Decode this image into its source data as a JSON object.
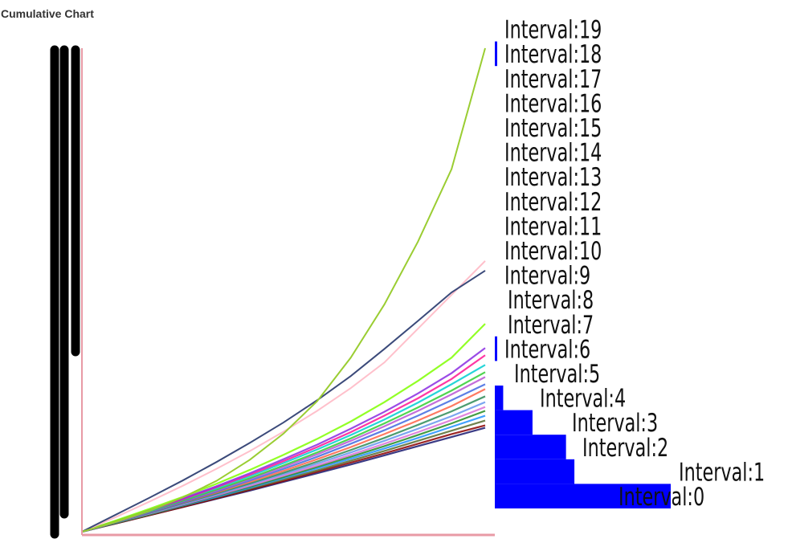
{
  "title": "Cumulative Chart",
  "colors": {
    "axis": "#e89aa5",
    "histogram": "#0000ff",
    "label_box": "#000000",
    "left_marks": "#000000"
  },
  "chart_data": [
    {
      "type": "line",
      "title": "Cumulative Chart",
      "xlabel": "",
      "ylabel": "",
      "x": [
        0,
        1,
        2,
        3,
        4,
        5,
        6,
        7,
        8,
        9,
        10,
        11,
        12
      ],
      "xlim": [
        0,
        12
      ],
      "ylim": [
        0,
        100
      ],
      "grid": false,
      "legend": "none",
      "series_count": 60,
      "series": [
        {
          "color": "#9acd32",
          "values": [
            0,
            2.0,
            4.3,
            7.1,
            10.5,
            14.9,
            20.3,
            27.0,
            36.0,
            47.0,
            60.0,
            75.0,
            100.0
          ]
        },
        {
          "color": "#3b4a7a",
          "values": [
            0,
            3.5,
            7.0,
            10.6,
            14.4,
            18.4,
            22.6,
            27.2,
            32.2,
            37.8,
            43.6,
            49.5,
            54.0
          ]
        },
        {
          "color": "#ffc0cb",
          "values": [
            0,
            3.0,
            6.2,
            9.5,
            13.0,
            16.7,
            20.7,
            25.0,
            29.7,
            35.0,
            42.0,
            49.0,
            56.0
          ]
        },
        {
          "color": "#7fff00",
          "values": [
            0,
            2.3,
            4.7,
            7.2,
            9.9,
            12.8,
            15.9,
            19.2,
            22.8,
            26.8,
            31.2,
            36.0,
            43.0
          ]
        },
        {
          "color": "#8a2be2",
          "values": [
            0,
            2.2,
            4.5,
            6.9,
            9.4,
            12.1,
            15.0,
            18.0,
            21.3,
            24.8,
            28.6,
            32.8,
            38.0
          ]
        },
        {
          "color": "#ff1493",
          "values": [
            0,
            2.2,
            4.4,
            6.7,
            9.2,
            11.8,
            14.6,
            17.5,
            20.6,
            24.0,
            27.6,
            31.6,
            36.5
          ]
        },
        {
          "color": "#00ced1",
          "values": [
            0,
            2.1,
            4.3,
            6.6,
            9.0,
            11.5,
            14.2,
            17.0,
            20.0,
            23.2,
            26.7,
            30.5,
            34.5
          ]
        },
        {
          "color": "#32cd32",
          "values": [
            0,
            2.1,
            4.2,
            6.4,
            8.7,
            11.1,
            13.7,
            16.4,
            19.3,
            22.4,
            25.7,
            29.2,
            33.0
          ]
        },
        {
          "color": "#ba55d3",
          "values": [
            0,
            2.0,
            4.1,
            6.3,
            8.5,
            10.9,
            13.4,
            16.0,
            18.8,
            21.8,
            25.0,
            28.4,
            32.0
          ]
        },
        {
          "color": "#4169e1",
          "values": [
            0,
            2.0,
            4.0,
            6.1,
            8.3,
            10.6,
            13.0,
            15.5,
            18.2,
            21.0,
            24.0,
            27.2,
            30.5
          ]
        },
        {
          "color": "#ff6347",
          "values": [
            0,
            2.0,
            4.0,
            6.0,
            8.1,
            10.3,
            12.6,
            15.0,
            17.5,
            20.2,
            23.0,
            26.0,
            29.5
          ]
        },
        {
          "color": "#2e8b57",
          "values": [
            0,
            1.9,
            3.9,
            5.9,
            7.9,
            10.0,
            12.2,
            14.5,
            16.9,
            19.4,
            22.1,
            24.9,
            28.0
          ]
        },
        {
          "color": "#6495ed",
          "values": [
            0,
            1.9,
            3.8,
            5.7,
            7.7,
            9.8,
            11.9,
            14.1,
            16.4,
            18.8,
            21.3,
            23.9,
            26.8
          ]
        },
        {
          "color": "#da70d6",
          "values": [
            0,
            1.9,
            3.7,
            5.6,
            7.5,
            9.5,
            11.6,
            13.7,
            15.9,
            18.2,
            20.6,
            23.1,
            25.8
          ]
        },
        {
          "color": "#228b22",
          "values": [
            0,
            1.8,
            3.6,
            5.5,
            7.4,
            9.3,
            11.3,
            13.4,
            15.5,
            17.7,
            20.0,
            22.4,
            25.0
          ]
        },
        {
          "color": "#1e90ff",
          "values": [
            0,
            1.8,
            3.6,
            5.4,
            7.2,
            9.1,
            11.1,
            13.1,
            15.1,
            17.2,
            19.4,
            21.7,
            24.0
          ]
        },
        {
          "color": "#556b2f",
          "values": [
            0,
            1.8,
            3.5,
            5.3,
            7.1,
            8.9,
            10.8,
            12.7,
            14.7,
            16.7,
            18.8,
            20.9,
            23.0
          ]
        },
        {
          "color": "#8b0000",
          "values": [
            0,
            1.7,
            3.4,
            5.1,
            6.9,
            8.7,
            10.5,
            12.4,
            14.3,
            16.2,
            18.2,
            20.2,
            22.0
          ]
        },
        {
          "color": "#191970",
          "values": [
            0,
            1.7,
            3.4,
            5.1,
            6.8,
            8.5,
            10.3,
            12.1,
            13.9,
            15.8,
            17.7,
            19.6,
            21.5
          ]
        }
      ]
    },
    {
      "type": "bar",
      "orientation": "horizontal",
      "categories": [
        "Interval:0",
        "Interval:1",
        "Interval:2",
        "Interval:3",
        "Interval:4",
        "Interval:5",
        "Interval:6",
        "Interval:7",
        "Interval:8",
        "Interval:9",
        "Interval:10",
        "Interval:11",
        "Interval:12",
        "Interval:13",
        "Interval:14",
        "Interval:15",
        "Interval:16",
        "Interval:17",
        "Interval:18",
        "Interval:19"
      ],
      "values": [
        42,
        19,
        17,
        9,
        2,
        0,
        0.4,
        0,
        0,
        0,
        0,
        0,
        0,
        0,
        0,
        0,
        0,
        0,
        0.4,
        0
      ],
      "xlim": [
        0,
        42
      ]
    }
  ]
}
